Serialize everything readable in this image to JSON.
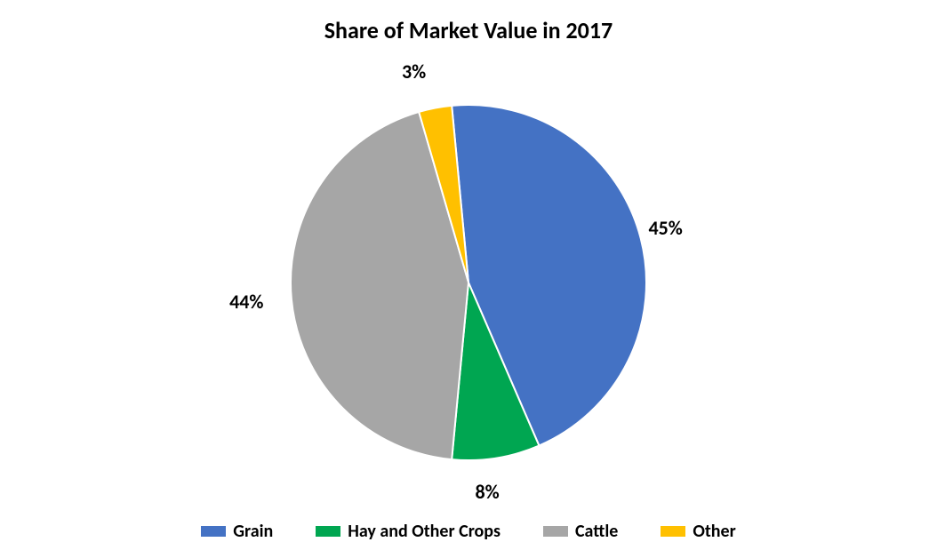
{
  "chart": {
    "type": "pie",
    "title": "Share of Market Value in 2017",
    "title_fontsize": 26,
    "title_fontweight": 700,
    "background_color": "#ffffff",
    "label_fontsize": 22,
    "label_fontweight": 700,
    "legend_fontsize": 20,
    "legend_fontweight": 700,
    "legend_swatch_width": 28,
    "legend_swatch_height": 12,
    "legend_position": "bottom",
    "pie_start_angle_deg": -5.4,
    "pie_radius": 200,
    "slice_gap_stroke_color": "#ffffff",
    "slice_gap_stroke_width": 2,
    "series": [
      {
        "name": "Grain",
        "value": 45,
        "percent_label": "45%",
        "color": "#4472c4"
      },
      {
        "name": "Hay and Other Crops",
        "value": 8,
        "percent_label": "8%",
        "color": "#00a651"
      },
      {
        "name": "Cattle",
        "value": 44,
        "percent_label": "44%",
        "color": "#a6a6a6"
      },
      {
        "name": "Other",
        "value": 3,
        "percent_label": "3%",
        "color": "#ffc000"
      }
    ]
  }
}
